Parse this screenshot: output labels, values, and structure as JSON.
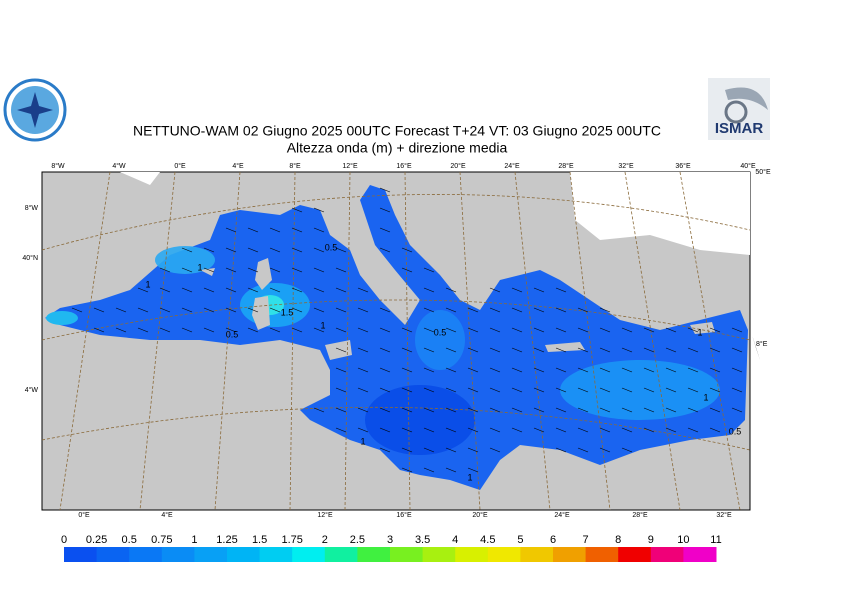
{
  "header": {
    "title": "NETTUNO-WAM  02   Giugno  2025 00UTC Forecast T+24 VT: 03   Giugno  2025 00UTC",
    "subtitle": "Altezza onda (m) + direzione media",
    "logo_right": "ISMAR"
  },
  "map": {
    "top_labels": [
      "8°W",
      "4°W",
      "0°E",
      "4°E",
      "8°E",
      "12°E",
      "16°E",
      "20°E",
      "24°E",
      "28°E",
      "32°E",
      "36°E",
      "40°E"
    ],
    "right_top_label": "50°E",
    "left_labels": [
      "8°W",
      "40°N",
      "4°W"
    ],
    "right_label": "8°E",
    "bottom_labels": [
      "0°E",
      "4°E",
      "12°E",
      "16°E",
      "20°E",
      "24°E",
      "28°E",
      "32°E"
    ],
    "contour_labels": [
      "1",
      "1",
      "1.5",
      "0.5",
      "0.5",
      "1",
      "0.5",
      "1",
      "1",
      "0.5",
      "1",
      "1"
    ]
  },
  "colorbar": {
    "ticks": [
      0,
      0.25,
      0.5,
      0.75,
      1,
      1.25,
      1.5,
      1.75,
      2,
      2.5,
      3,
      3.5,
      4,
      4.5,
      5,
      6,
      7,
      8,
      9,
      10,
      11
    ],
    "colors": [
      "#0a50f0",
      "#0a64f2",
      "#0a78f5",
      "#0a8cf5",
      "#08a0f5",
      "#00b4f5",
      "#00cdf2",
      "#00eef0",
      "#10f0a0",
      "#40f040",
      "#78f020",
      "#a8f010",
      "#d8f000",
      "#f0e800",
      "#f0c800",
      "#f0a000",
      "#f06000",
      "#f00000",
      "#f00078",
      "#f000c8"
    ]
  }
}
